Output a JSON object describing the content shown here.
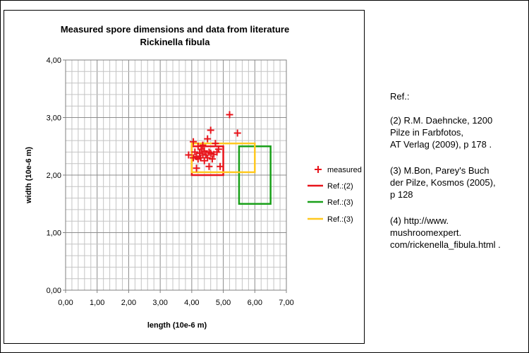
{
  "chart_data": {
    "type": "scatter",
    "title": "Measured spore dimensions and data from literature",
    "subtitle": "Rickinella fibula",
    "xlabel": "length (10e-6 m)",
    "ylabel": "width (10e-6 m)",
    "xlim": [
      0,
      7
    ],
    "ylim": [
      0,
      4
    ],
    "x_ticks": [
      "0,00",
      "1,00",
      "2,00",
      "3,00",
      "4,00",
      "5,00",
      "6,00",
      "7,00"
    ],
    "y_ticks": [
      "0,00",
      "1,00",
      "2,00",
      "3,00",
      "4,00"
    ],
    "grid": true,
    "legend_position": "right",
    "series": [
      {
        "name": "measured",
        "type": "scatter",
        "marker": "plus",
        "color": "#e8141b",
        "points": [
          [
            4.05,
            2.58
          ],
          [
            4.5,
            2.63
          ],
          [
            4.6,
            2.78
          ],
          [
            5.2,
            3.05
          ],
          [
            5.45,
            2.73
          ],
          [
            4.2,
            2.5
          ],
          [
            4.75,
            2.55
          ],
          [
            4.3,
            2.45
          ],
          [
            4.4,
            2.42
          ],
          [
            4.55,
            2.4
          ],
          [
            4.1,
            2.4
          ],
          [
            4.25,
            2.38
          ],
          [
            4.35,
            2.35
          ],
          [
            4.45,
            2.35
          ],
          [
            4.6,
            2.38
          ],
          [
            4.7,
            2.36
          ],
          [
            4.8,
            2.4
          ],
          [
            4.15,
            2.32
          ],
          [
            4.28,
            2.3
          ],
          [
            4.5,
            2.3
          ],
          [
            4.65,
            2.28
          ],
          [
            3.9,
            2.35
          ],
          [
            4.05,
            2.3
          ],
          [
            4.2,
            2.28
          ],
          [
            4.4,
            2.25
          ],
          [
            4.55,
            2.15
          ],
          [
            4.9,
            2.15
          ],
          [
            4.15,
            2.12
          ],
          [
            4.85,
            2.45
          ],
          [
            4.35,
            2.52
          ]
        ]
      },
      {
        "name": "Ref.:(2)",
        "type": "rectangle",
        "color": "#e8141b",
        "x": [
          4.0,
          5.0
        ],
        "y": [
          2.0,
          2.5
        ]
      },
      {
        "name": "Ref.:(3)",
        "type": "rectangle",
        "color": "#1aa01a",
        "x": [
          5.5,
          6.5
        ],
        "y": [
          1.5,
          2.5
        ]
      },
      {
        "name": "Ref.:(3)",
        "type": "rectangle",
        "color": "#ffc81e",
        "x": [
          4.0,
          6.0
        ],
        "y": [
          2.05,
          2.55
        ]
      }
    ]
  },
  "references": {
    "heading": "Ref.:",
    "entries": [
      {
        "lines": [
          "(2) R.M. Daehncke, 1200",
          "Pilze in Farbfotos,",
          "AT Verlag (2009), p 178 ."
        ]
      },
      {
        "lines": [
          "(3) M.Bon, Parey's Buch",
          "der Pilze, Kosmos (2005),",
          "p 128"
        ]
      },
      {
        "lines": [
          "(4) http://www.",
          "mushroomexpert.",
          "com/rickenella_fibula.html ."
        ]
      }
    ]
  }
}
